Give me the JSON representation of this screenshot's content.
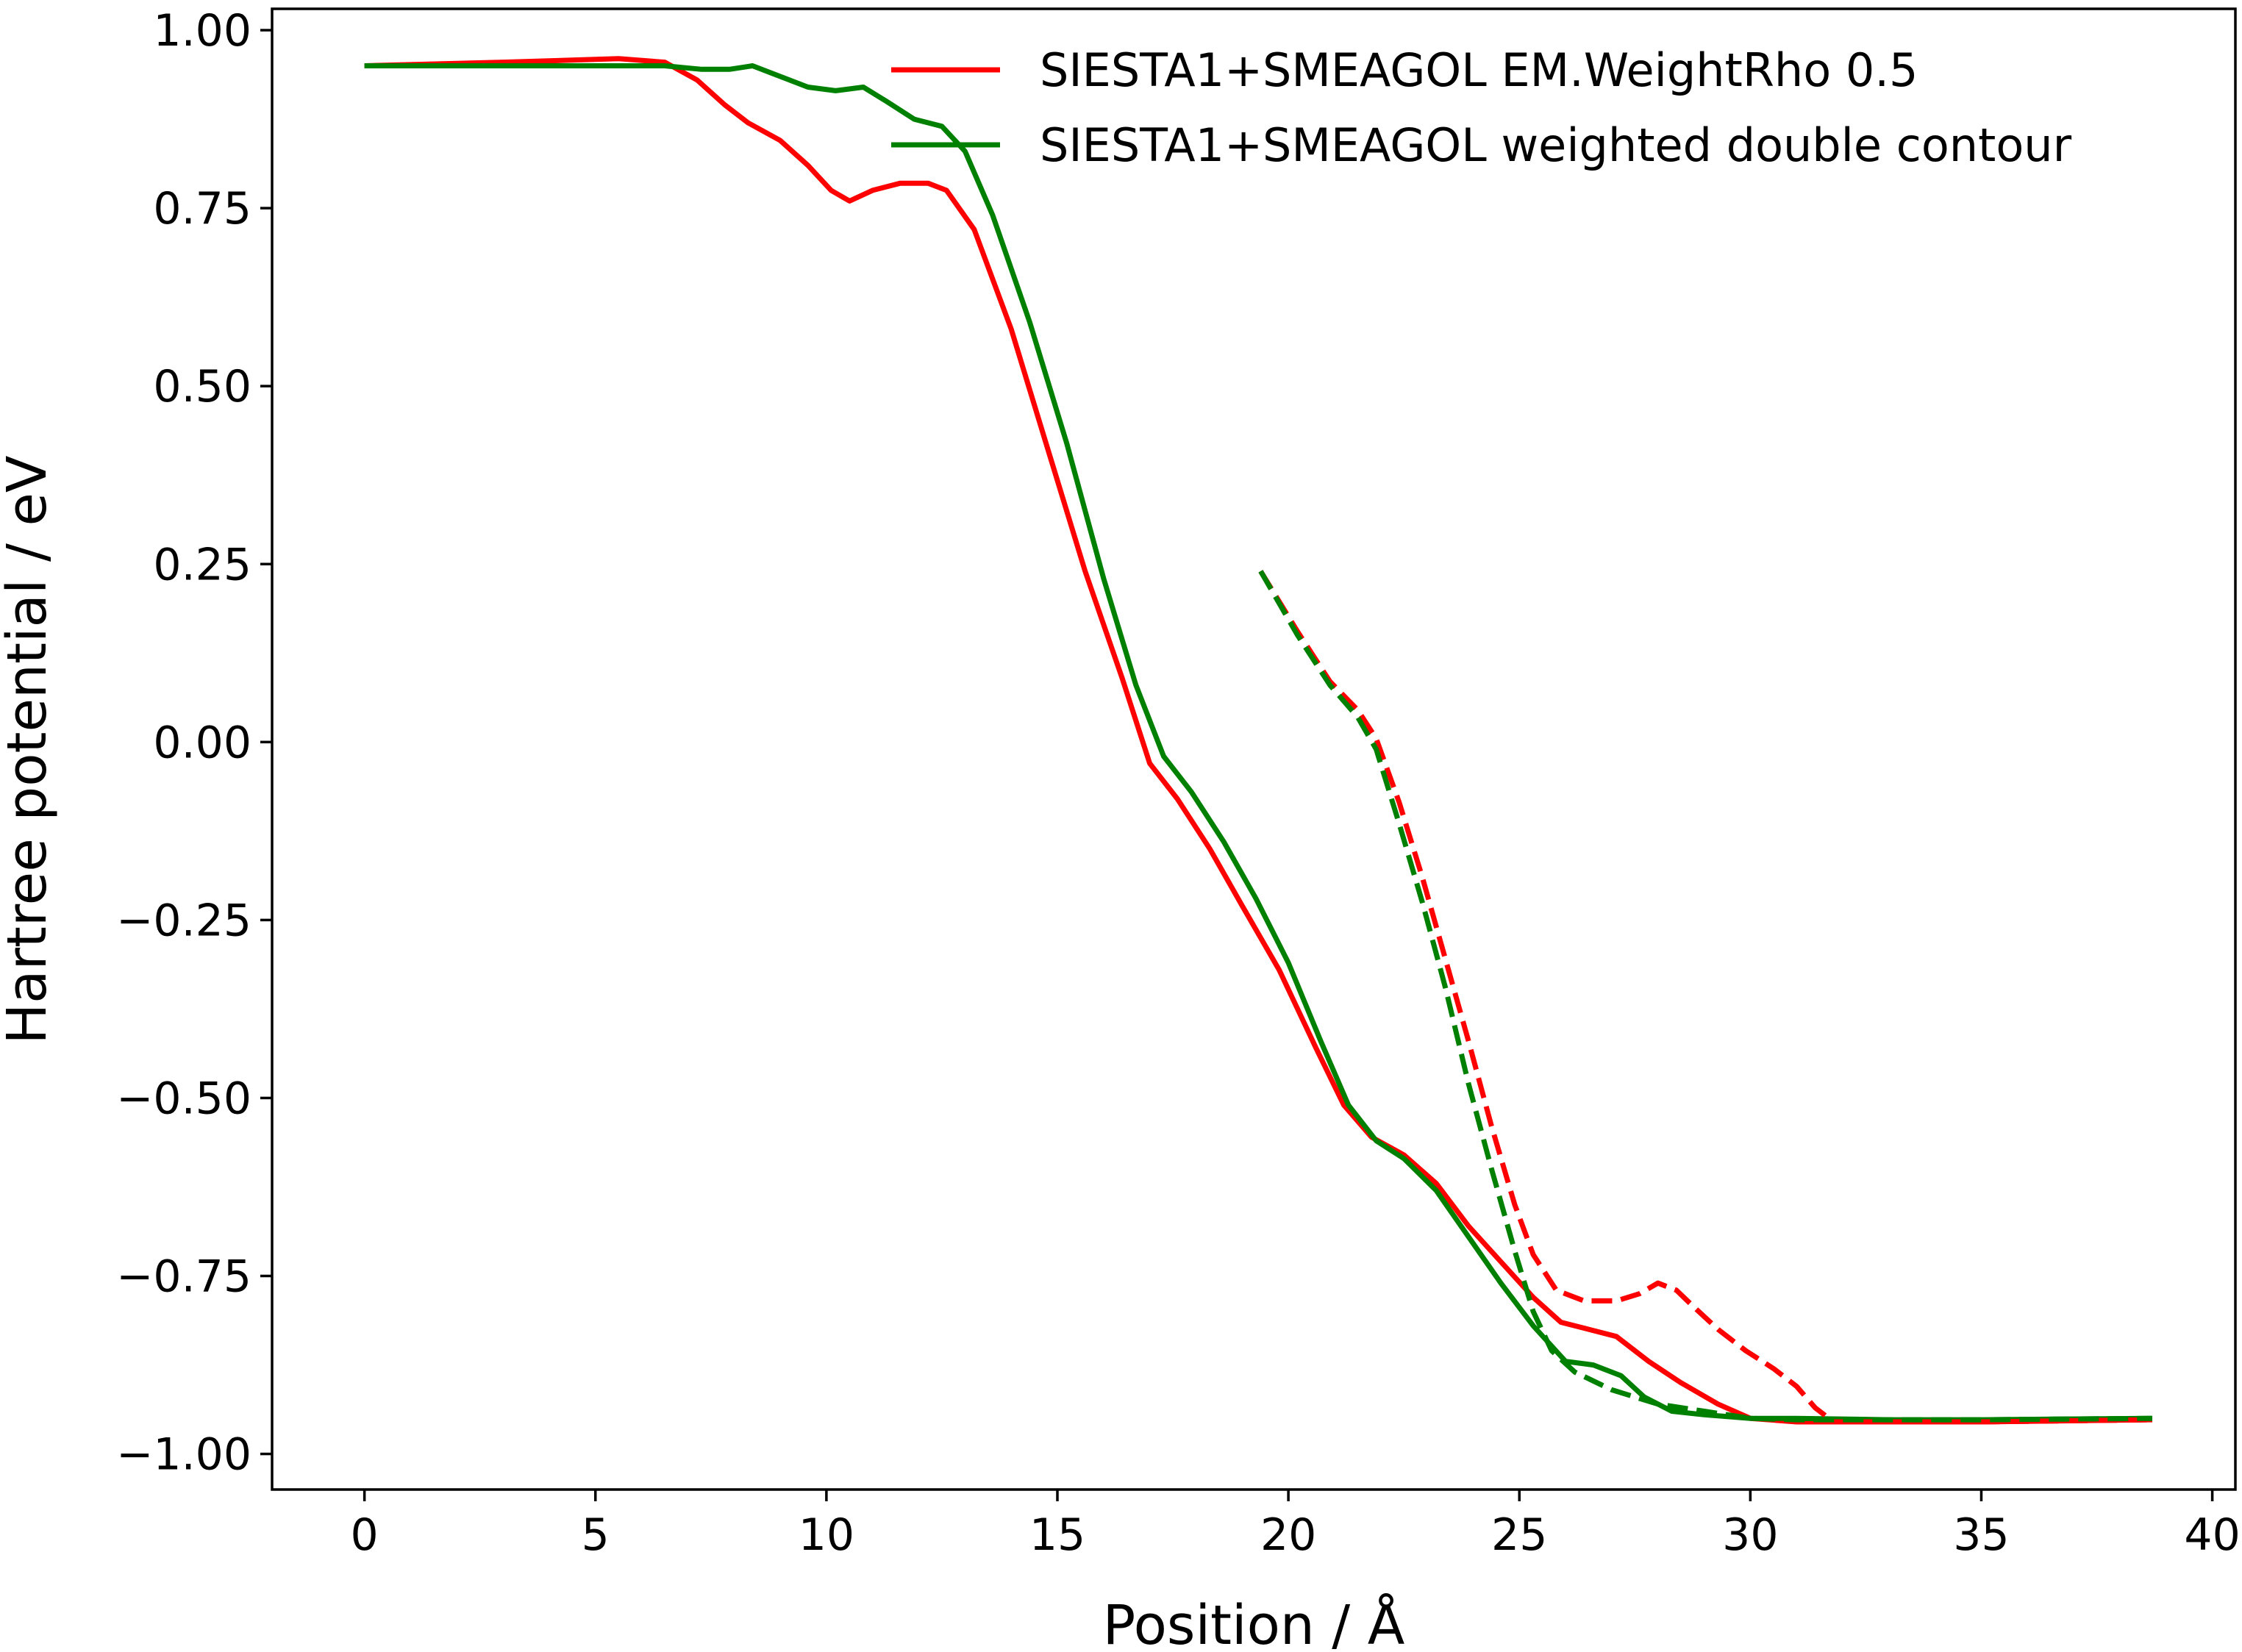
{
  "chart_data": {
    "type": "line",
    "xlabel": "Position / Å",
    "ylabel": "Hartree potential / eV",
    "xlim": [
      -2,
      40.5
    ],
    "ylim": [
      -1.05,
      1.03
    ],
    "xticks": [
      0,
      5,
      10,
      15,
      20,
      25,
      30,
      35,
      40
    ],
    "xtick_labels": [
      "0",
      "5",
      "10",
      "15",
      "20",
      "25",
      "30",
      "35",
      "40"
    ],
    "yticks": [
      1.0,
      0.75,
      0.5,
      0.25,
      0.0,
      -0.25,
      -0.5,
      -0.75,
      -1.0
    ],
    "ytick_labels": [
      "1.00",
      "0.75",
      "0.50",
      "0.25",
      "0.00",
      "−0.25",
      "−0.50",
      "−0.75",
      "−1.00"
    ],
    "grid": false,
    "legend_position": "top-right",
    "series": [
      {
        "name": "SIESTA1+SMEAGOL EM.WeightRho 0.5",
        "color": "#ff0000",
        "style": "solid",
        "x": [
          0,
          3,
          5.5,
          6.5,
          7.2,
          7.8,
          8.3,
          9,
          9.6,
          10.1,
          10.5,
          11,
          11.6,
          12.2,
          12.6,
          13.2,
          14,
          14.8,
          15.6,
          16.4,
          17,
          17.6,
          18.3,
          19,
          19.8,
          20.6,
          21.2,
          21.8,
          22.5,
          23.2,
          23.9,
          24.6,
          25.3,
          25.9,
          26.5,
          27.1,
          27.8,
          28.5,
          29.3,
          30,
          31,
          33,
          35,
          38.7
        ],
        "y": [
          0.95,
          0.955,
          0.96,
          0.955,
          0.93,
          0.895,
          0.87,
          0.845,
          0.81,
          0.775,
          0.76,
          0.775,
          0.785,
          0.785,
          0.775,
          0.72,
          0.58,
          0.41,
          0.24,
          0.09,
          -0.03,
          -0.08,
          -0.15,
          -0.23,
          -0.32,
          -0.43,
          -0.51,
          -0.555,
          -0.58,
          -0.62,
          -0.68,
          -0.73,
          -0.78,
          -0.815,
          -0.825,
          -0.835,
          -0.87,
          -0.9,
          -0.93,
          -0.95,
          -0.955,
          -0.955,
          -0.955,
          -0.952
        ]
      },
      {
        "name": "SIESTA1+SMEAGOL weighted double contour",
        "color": "#008000",
        "style": "solid",
        "x": [
          0,
          4,
          6.5,
          7.3,
          7.9,
          8.4,
          9,
          9.6,
          10.2,
          10.8,
          11.3,
          11.9,
          12.5,
          13,
          13.6,
          14.4,
          15.2,
          16,
          16.7,
          17.3,
          17.9,
          18.6,
          19.3,
          20,
          20.7,
          21.3,
          21.9,
          22.5,
          23.2,
          23.9,
          24.6,
          25.3,
          26,
          26.6,
          27.2,
          27.7,
          28.3,
          29,
          30,
          31,
          33,
          35,
          38.7
        ],
        "y": [
          0.95,
          0.95,
          0.95,
          0.945,
          0.945,
          0.95,
          0.935,
          0.92,
          0.915,
          0.92,
          0.9,
          0.875,
          0.865,
          0.83,
          0.74,
          0.59,
          0.42,
          0.23,
          0.08,
          -0.02,
          -0.07,
          -0.14,
          -0.22,
          -0.31,
          -0.42,
          -0.51,
          -0.56,
          -0.585,
          -0.63,
          -0.695,
          -0.76,
          -0.82,
          -0.87,
          -0.875,
          -0.89,
          -0.92,
          -0.94,
          -0.945,
          -0.95,
          -0.95,
          -0.952,
          -0.952,
          -0.95
        ]
      },
      {
        "name": "",
        "color": "#ff0000",
        "style": "dashed",
        "x": [
          19.4,
          20.2,
          20.9,
          21.5,
          21.9,
          22.4,
          22.9,
          23.4,
          23.9,
          24.4,
          24.9,
          25.3,
          25.8,
          26.4,
          27.1,
          27.6,
          28,
          28.4,
          28.8,
          29.3,
          29.9,
          30.5,
          31,
          31.4,
          31.8,
          33,
          35,
          38.7
        ],
        "y": [
          0.24,
          0.155,
          0.085,
          0.045,
          0.005,
          -0.085,
          -0.19,
          -0.305,
          -0.42,
          -0.54,
          -0.65,
          -0.72,
          -0.77,
          -0.785,
          -0.785,
          -0.775,
          -0.76,
          -0.77,
          -0.795,
          -0.825,
          -0.855,
          -0.88,
          -0.905,
          -0.935,
          -0.955,
          -0.955,
          -0.955,
          -0.952
        ]
      },
      {
        "name": "",
        "color": "#008000",
        "style": "dashed",
        "x": [
          19.4,
          20.2,
          20.9,
          21.5,
          21.9,
          22.4,
          22.9,
          23.4,
          23.9,
          24.4,
          24.9,
          25.3,
          25.7,
          26.2,
          27,
          28,
          29,
          30,
          31,
          33,
          35,
          38.7
        ],
        "y": [
          0.24,
          0.15,
          0.08,
          0.035,
          -0.01,
          -0.115,
          -0.225,
          -0.345,
          -0.48,
          -0.6,
          -0.715,
          -0.8,
          -0.855,
          -0.885,
          -0.91,
          -0.93,
          -0.94,
          -0.95,
          -0.952,
          -0.952,
          -0.952,
          -0.95
        ]
      }
    ]
  }
}
